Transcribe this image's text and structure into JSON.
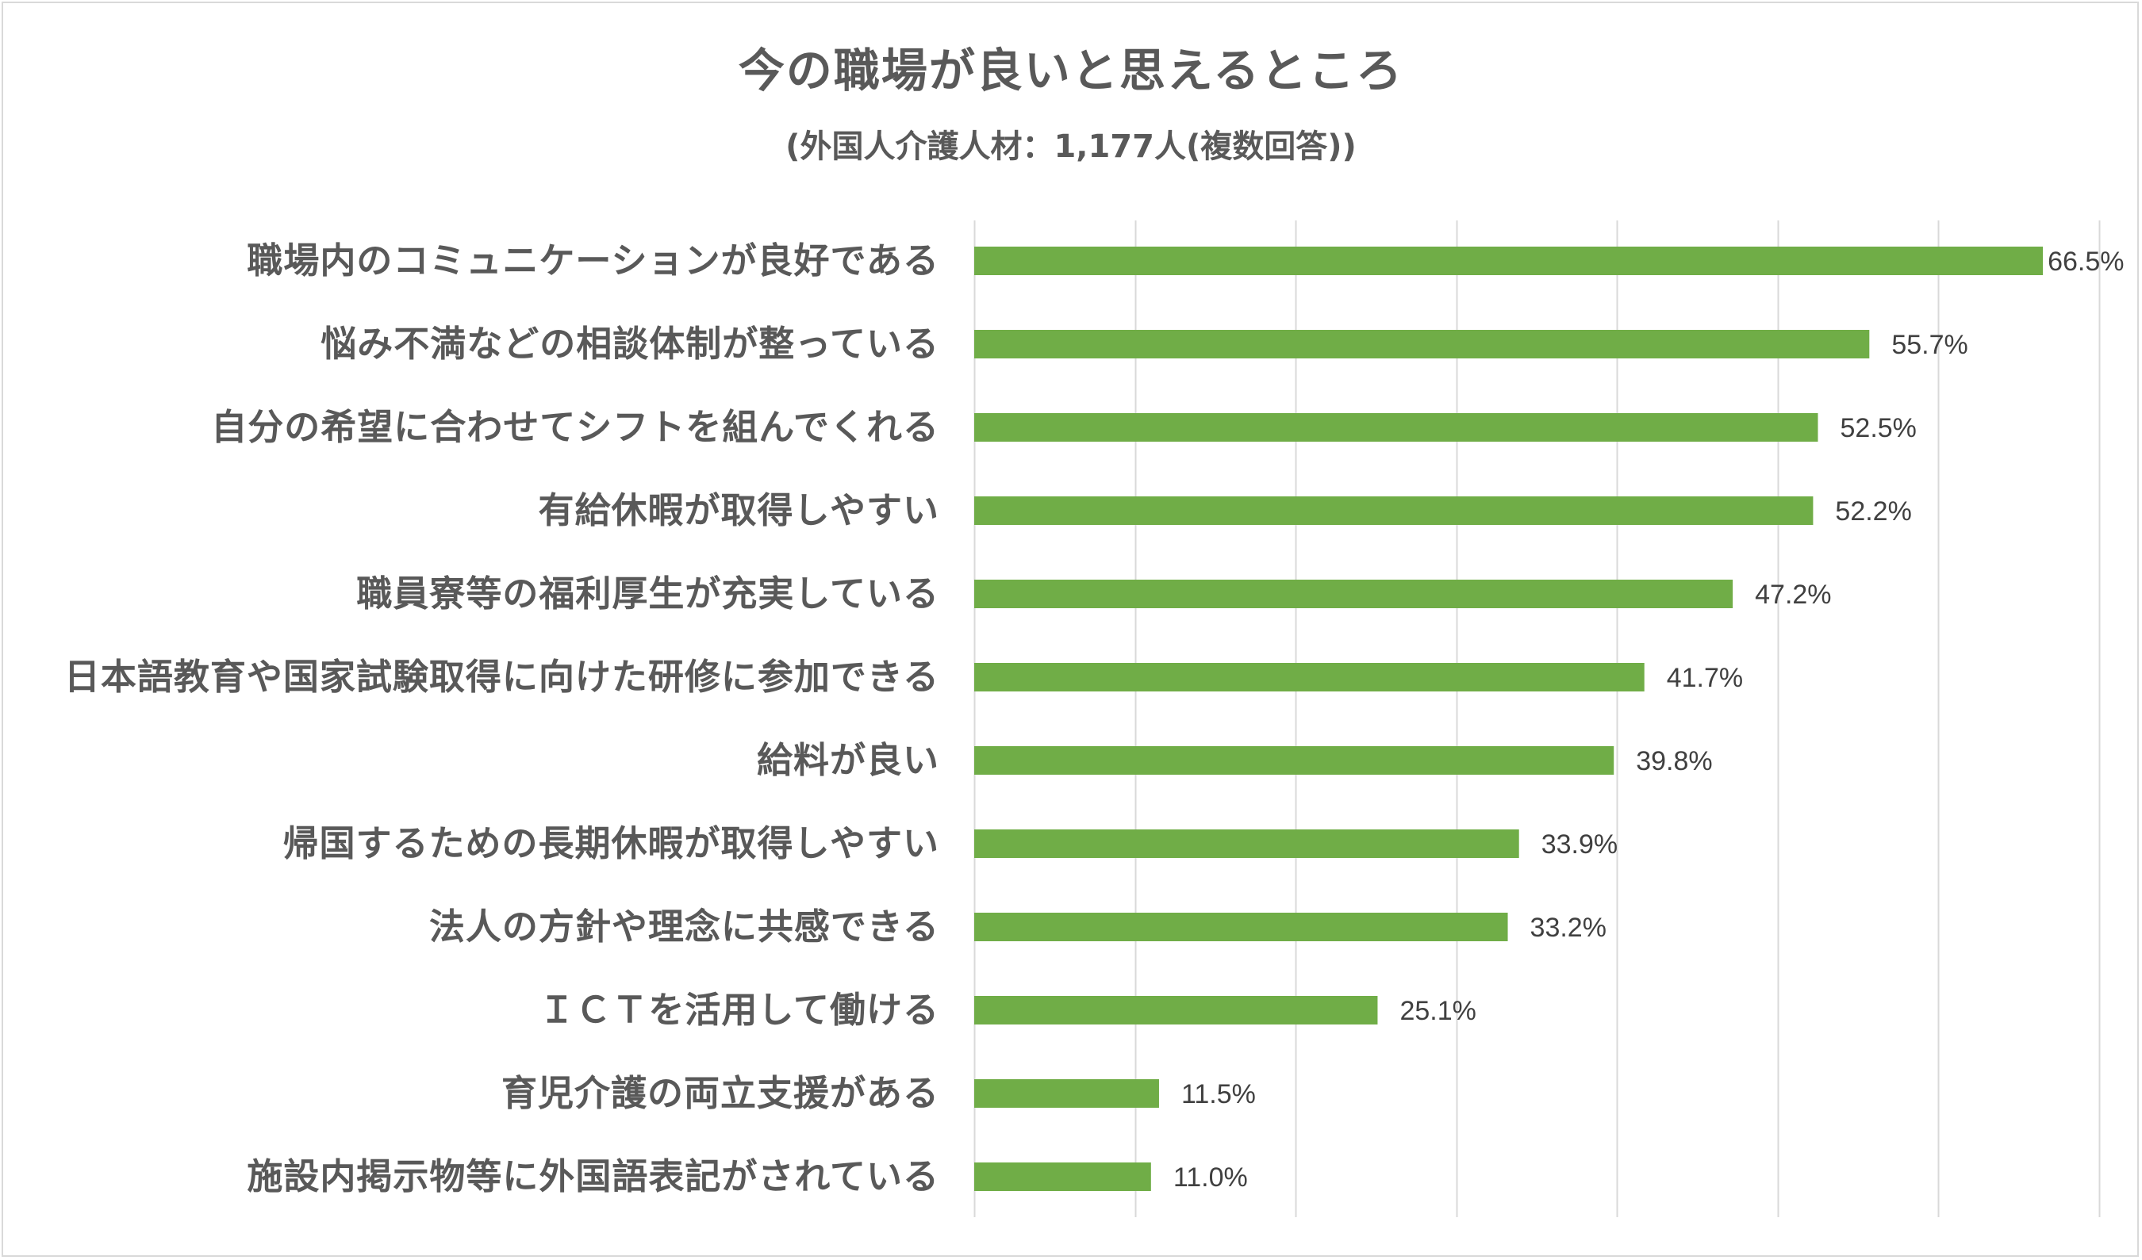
{
  "chart_data": {
    "type": "bar",
    "orientation": "horizontal",
    "title": "今の職場が良いと思えるところ",
    "subtitle": "(外国人介護人材：1,177人(複数回答))",
    "categories": [
      "職場内のコミュニケーションが良好である",
      "悩み不満などの相談体制が整っている",
      "自分の希望に合わせてシフトを組んでくれる",
      "有給休暇が取得しやすい",
      "職員寮等の福利厚生が充実している",
      "日本語教育や国家試験取得に向けた研修に参加できる",
      "給料が良い",
      "帰国するための長期休暇が取得しやすい",
      "法人の方針や理念に共感できる",
      "ＩＣＴを活用して働ける",
      "育児介護の両立支援がある",
      "施設内掲示物等に外国語表記がされている"
    ],
    "values": [
      66.5,
      55.7,
      52.5,
      52.2,
      47.2,
      41.7,
      39.8,
      33.9,
      33.2,
      25.1,
      11.5,
      11.0
    ],
    "value_labels": [
      "66.5%",
      "55.7%",
      "52.5%",
      "52.2%",
      "47.2%",
      "41.7%",
      "39.8%",
      "33.9%",
      "33.2%",
      "25.1%",
      "11.5%",
      "11.0%"
    ],
    "xlim": [
      0,
      70
    ],
    "grid_step": 10,
    "grid": true,
    "legend": "none",
    "bar_color": "#70ad47",
    "grid_color": "#d9d9d9"
  }
}
